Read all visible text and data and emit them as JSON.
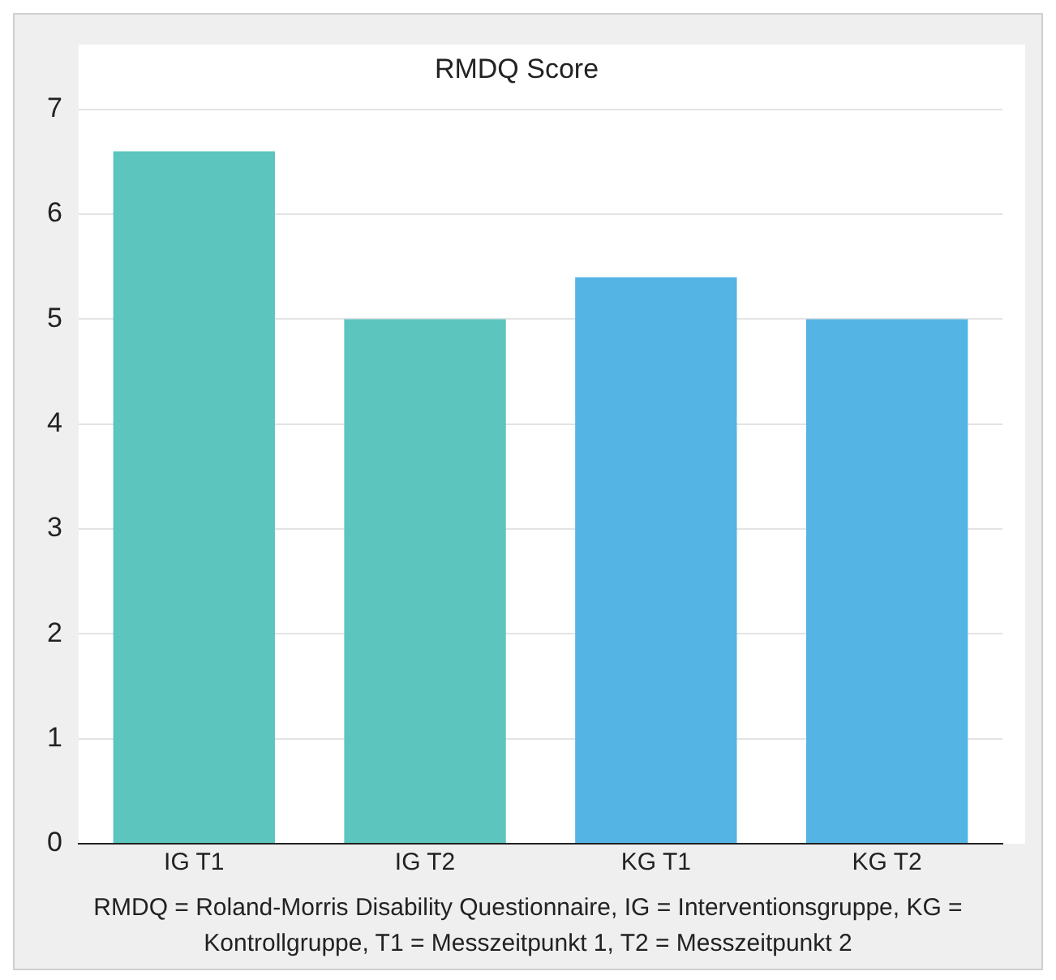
{
  "chart_data": {
    "type": "bar",
    "title": "RMDQ Score",
    "categories": [
      "IG T1",
      "IG T2",
      "KG T1",
      "KG T2"
    ],
    "values": [
      6.6,
      5.0,
      5.4,
      5.0
    ],
    "colors": [
      "#5bc5be",
      "#5bc5be",
      "#54b4e4",
      "#54b4e4"
    ],
    "ylim": [
      0,
      7
    ],
    "yticks": [
      0,
      1,
      2,
      3,
      4,
      5,
      6,
      7
    ],
    "grid": "y",
    "annotations": [
      "RMDQ = Roland-Morris Disability Questionnaire, IG = Interventionsgruppe, KG = Kontrollgruppe, T1 = Messzeitpunkt 1, T2 = Messzeitpunkt 2"
    ]
  }
}
